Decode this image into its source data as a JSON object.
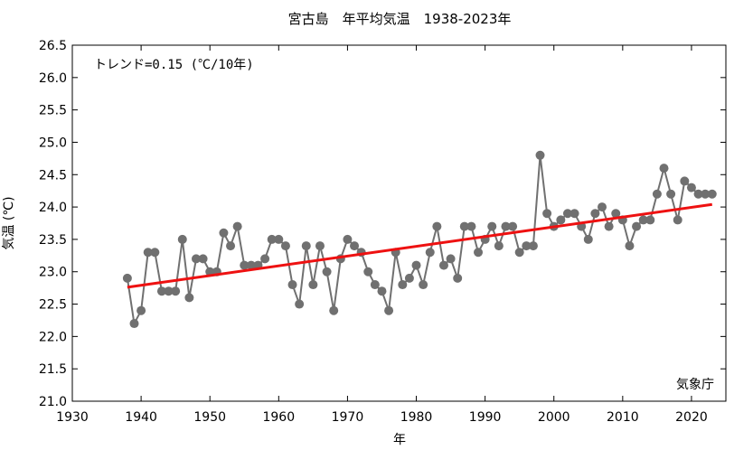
{
  "chart_data": {
    "type": "line",
    "title": "宮古島　年平均気温　1938-2023年",
    "xlabel": "年",
    "ylabel": "気温 (℃)",
    "xlim": [
      1930,
      2025
    ],
    "ylim": [
      21.0,
      26.5
    ],
    "x_ticks": [
      1930,
      1940,
      1950,
      1960,
      1970,
      1980,
      1990,
      2000,
      2010,
      2020
    ],
    "y_ticks": [
      "21.0",
      "21.5",
      "22.0",
      "22.5",
      "23.0",
      "23.5",
      "24.0",
      "24.5",
      "25.0",
      "25.5",
      "26.0",
      "26.5"
    ],
    "trend_text": "トレンド=0.15 (℃/10年)",
    "source": "気象庁",
    "grid": false,
    "colors": {
      "series": "#707070",
      "trend": "#ee1111",
      "axis": "#000000"
    },
    "series": [
      {
        "x": [
          1938,
          1939,
          1940,
          1941,
          1942,
          1943,
          1944,
          1945,
          1946,
          1947,
          1948,
          1949,
          1950,
          1951,
          1952,
          1953,
          1954,
          1955,
          1956,
          1957,
          1958,
          1959,
          1960,
          1961,
          1962,
          1963,
          1964,
          1965,
          1966,
          1967,
          1968,
          1969,
          1970,
          1971,
          1972,
          1973,
          1974,
          1975,
          1976,
          1977,
          1978,
          1979,
          1980,
          1981,
          1982,
          1983,
          1984,
          1985,
          1986,
          1987,
          1988,
          1989,
          1990,
          1991,
          1992,
          1993,
          1994,
          1995,
          1996,
          1997,
          1998,
          1999,
          2000,
          2001,
          2002,
          2003,
          2004,
          2005,
          2006,
          2007,
          2008,
          2009,
          2010,
          2011,
          2012,
          2013,
          2014,
          2015,
          2016,
          2017,
          2018,
          2019,
          2020,
          2021,
          2022,
          2023
        ],
        "values": [
          22.9,
          22.2,
          22.4,
          23.3,
          23.3,
          22.7,
          22.7,
          22.7,
          23.5,
          22.6,
          23.2,
          23.2,
          23.0,
          23.0,
          23.6,
          23.4,
          23.7,
          23.1,
          23.1,
          23.1,
          23.2,
          23.5,
          23.5,
          23.4,
          22.8,
          22.5,
          23.4,
          22.8,
          23.4,
          23.0,
          22.4,
          23.2,
          23.5,
          23.4,
          23.3,
          23.0,
          22.8,
          22.7,
          22.4,
          23.3,
          22.8,
          22.9,
          23.1,
          22.8,
          23.3,
          23.7,
          23.1,
          23.2,
          22.9,
          23.7,
          23.7,
          23.3,
          23.5,
          23.7,
          23.4,
          23.7,
          23.7,
          23.3,
          23.4,
          23.4,
          24.8,
          23.9,
          23.7,
          23.8,
          23.9,
          23.9,
          23.7,
          23.5,
          23.9,
          24.0,
          23.7,
          23.9,
          23.8,
          23.4,
          23.7,
          23.8,
          23.8,
          24.2,
          24.6,
          24.2,
          23.8,
          24.4,
          24.3,
          24.2,
          24.2,
          24.2
        ]
      }
    ],
    "trend": {
      "x": [
        1938,
        2023
      ],
      "y": [
        22.76,
        24.04
      ]
    }
  }
}
